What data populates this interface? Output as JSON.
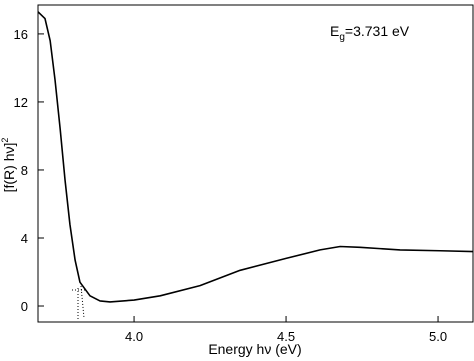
{
  "chart_data": {
    "type": "line",
    "x": [
      3.684,
      3.707,
      3.724,
      3.74,
      3.757,
      3.773,
      3.789,
      3.806,
      3.822,
      3.855,
      3.888,
      3.921,
      4.0,
      4.086,
      4.217,
      4.349,
      4.5,
      4.612,
      4.678,
      4.743,
      4.875,
      5.007,
      5.115
    ],
    "values": [
      17.3,
      16.9,
      15.6,
      13.3,
      10.4,
      7.4,
      4.8,
      2.7,
      1.4,
      0.6,
      0.3,
      0.24,
      0.35,
      0.6,
      1.2,
      2.1,
      2.8,
      3.3,
      3.5,
      3.45,
      3.3,
      3.25,
      3.2
    ],
    "color": "#000000",
    "xlim": [
      3.684,
      5.115
    ],
    "ylim": [
      -0.94,
      17.7
    ],
    "xticks": [
      {
        "value": 4,
        "label": "4.0"
      },
      {
        "value": 4.5,
        "label": "4.5"
      },
      {
        "value": 5,
        "label": "5.0"
      }
    ],
    "yticks": [
      0,
      4,
      8,
      12,
      16
    ],
    "xlabel": "Energy  hν (eV)",
    "ylabel": {
      "text": "[f(R) hν]",
      "sup": "2"
    },
    "annotation": {
      "text": "E",
      "sub": "g",
      "rest": "=3.731 eV"
    }
  }
}
